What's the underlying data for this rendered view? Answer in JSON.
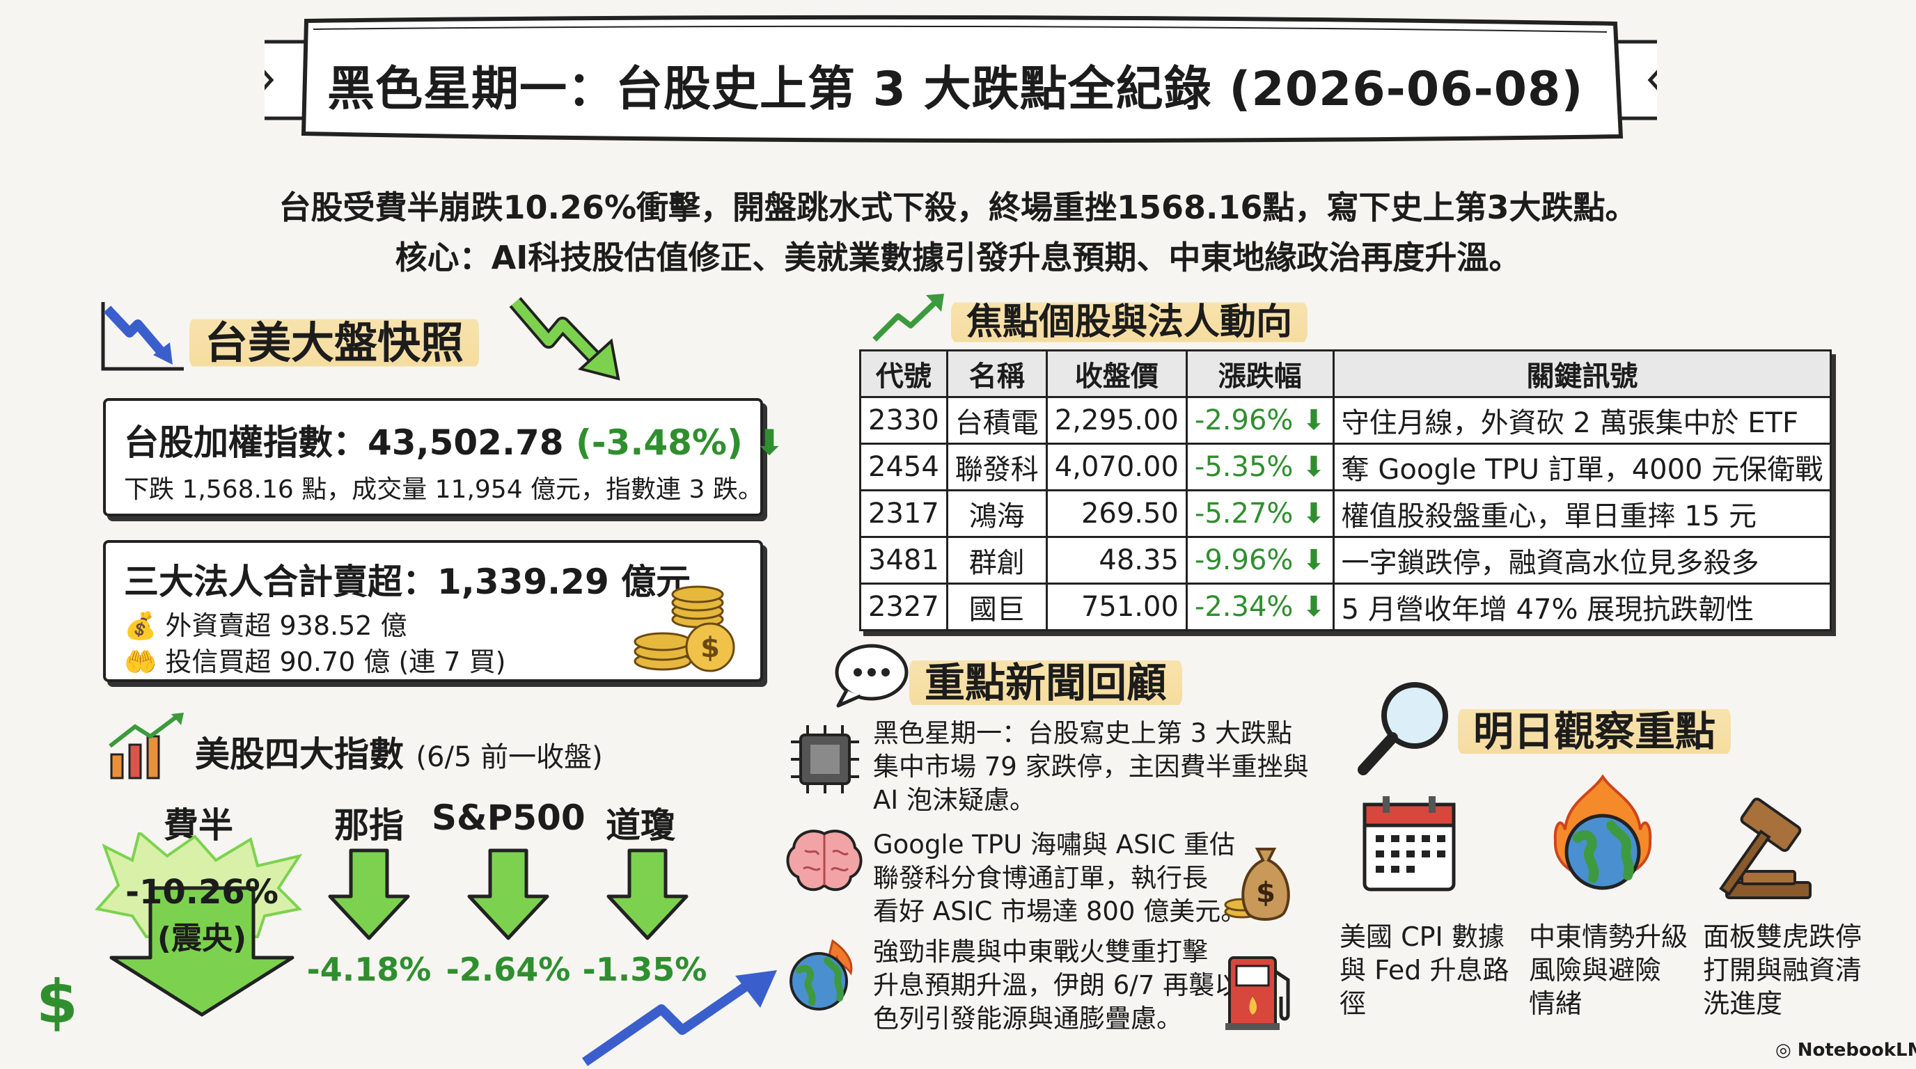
{
  "title": "黑色星期一：台股史上第 3 大跌點全紀錄 (2026-06-08)",
  "subtitle_line1": "台股受費半崩跌10.26%衝擊，開盤跳水式下殺，終場重挫1568.16點，寫下史上第3大跌點。",
  "subtitle_line2": "核心：AI科技股估值修正、美就業數據引發升息預期、中東地緣政治再度升溫。",
  "market_section": {
    "title": "台美大盤快照",
    "taiex": {
      "label": "台股加權指數：43,502.78",
      "change": "(-3.48%)",
      "detail": "下跌 1,568.16 點，成交量 11,954 億元，指數連 3 跌。"
    },
    "institutional": {
      "headline": "三大法人合計賣超：1,339.29 億元",
      "foreign": "外資賣超 938.52 億",
      "trust": "投信買超 90.70 億 (連 7 買)"
    }
  },
  "us_indices": {
    "title": "美股四大指數",
    "note": "(6/5 前一收盤)",
    "items": [
      {
        "name": "費半",
        "value": "-10.26%",
        "tag": "(震央)"
      },
      {
        "name": "那指",
        "value": "-4.18%"
      },
      {
        "name": "S&P500",
        "value": "-2.64%"
      },
      {
        "name": "道瓊",
        "value": "-1.35%"
      }
    ]
  },
  "stocks_section": {
    "title": "焦點個股與法人動向",
    "headers": [
      "代號",
      "名稱",
      "收盤價",
      "漲跌幅",
      "關鍵訊號"
    ],
    "rows": [
      {
        "code": "2330",
        "name": "台積電",
        "price": "2,295.00",
        "change": "-2.96%",
        "signal": "守住月線，外資砍 2 萬張集中於 ETF"
      },
      {
        "code": "2454",
        "name": "聯發科",
        "price": "4,070.00",
        "change": "-5.35%",
        "signal": "奪 Google TPU 訂單，4000 元保衛戰"
      },
      {
        "code": "2317",
        "name": "鴻海",
        "price": "269.50",
        "change": "-5.27%",
        "signal": "權值股殺盤重心，單日重摔 15 元"
      },
      {
        "code": "3481",
        "name": "群創",
        "price": "48.35",
        "change": "-9.96%",
        "signal": "一字鎖跌停，融資高水位見多殺多"
      },
      {
        "code": "2327",
        "name": "國巨",
        "price": "751.00",
        "change": "-2.34%",
        "signal": "5 月營收年增 47% 展現抗跌韌性"
      }
    ]
  },
  "news_section": {
    "title": "重點新聞回顧",
    "items": [
      {
        "icon": "chip-icon",
        "lines": [
          "黑色星期一：台股寫史上第 3 大跌點",
          "集中市場 79 家跌停，主因費半重挫與",
          "AI 泡沫疑慮。"
        ]
      },
      {
        "icon": "brain-icon",
        "lines": [
          "Google TPU 海嘯與 ASIC 重估",
          "聯發科分食博通訂單，執行長",
          "看好 ASIC 市場達 800 億美元。"
        ]
      },
      {
        "icon": "burning-globe-icon",
        "lines": [
          "強勁非農與中東戰火雙重打擊",
          "升息預期升溫，伊朗 6/7 再襲以",
          "色列引發能源與通膨疊慮。"
        ]
      }
    ]
  },
  "watch_section": {
    "title": "明日觀察重點",
    "items": [
      {
        "icon": "calendar-icon",
        "lines": [
          "美國 CPI 數據",
          "與 Fed 升息路",
          "徑"
        ]
      },
      {
        "icon": "burning-globe-icon",
        "lines": [
          "中東情勢升級",
          "風險與避險",
          "情緒"
        ]
      },
      {
        "icon": "gavel-icon",
        "lines": [
          "面板雙虎跌停",
          "打開與融資清",
          "洗進度"
        ]
      }
    ]
  },
  "footer": "NotebookLM",
  "colors": {
    "down_green": "#2f8f2f",
    "arrow_green": "#7cd24f",
    "highlight": "#f5dca0",
    "blue_arrow": "#3a5fcd"
  }
}
